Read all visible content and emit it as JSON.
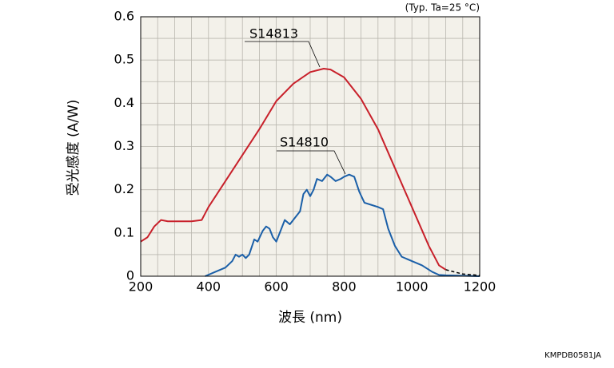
{
  "chart_data": {
    "type": "line",
    "note": "(Typ. Ta=25 °C)",
    "x_label": "波長 (nm)",
    "y_label": "受光感度 (A/W)",
    "footer": "KMPDB0581JA",
    "xlim": [
      200,
      1200
    ],
    "xticks": [
      200,
      400,
      600,
      800,
      1000,
      1200
    ],
    "ylim": [
      0,
      0.6
    ],
    "yticks": [
      0,
      0.1,
      0.2,
      0.3,
      0.4,
      0.5,
      0.6
    ],
    "xgrid": [
      250,
      300,
      350,
      450,
      500,
      550,
      650,
      700,
      750,
      850,
      900,
      950,
      1050,
      1100,
      1150
    ],
    "ygrid": [
      0.05,
      0.15,
      0.25,
      0.35,
      0.45,
      0.55
    ],
    "grid": true,
    "series": [
      {
        "name": "S14813",
        "color": "#c8202a",
        "x": [
          200,
          220,
          240,
          260,
          280,
          300,
          350,
          380,
          400,
          450,
          500,
          550,
          600,
          650,
          700,
          740,
          760,
          800,
          850,
          900,
          950,
          1000,
          1050,
          1080,
          1100
        ],
        "values": [
          0.08,
          0.09,
          0.115,
          0.13,
          0.127,
          0.127,
          0.127,
          0.13,
          0.16,
          0.22,
          0.28,
          0.34,
          0.405,
          0.445,
          0.472,
          0.48,
          0.478,
          0.46,
          0.41,
          0.34,
          0.25,
          0.16,
          0.07,
          0.025,
          0.015
        ]
      },
      {
        "name": "S14810",
        "color": "#1a5fa8",
        "x": [
          390,
          420,
          450,
          470,
          480,
          490,
          500,
          510,
          520,
          535,
          545,
          560,
          570,
          580,
          590,
          600,
          610,
          625,
          640,
          660,
          670,
          680,
          690,
          700,
          710,
          720,
          735,
          750,
          760,
          775,
          790,
          800,
          815,
          830,
          845,
          860,
          880,
          900,
          915,
          930,
          950,
          970,
          1000,
          1030,
          1060,
          1080,
          1100,
          1200
        ],
        "values": [
          0,
          0.01,
          0.02,
          0.035,
          0.05,
          0.045,
          0.05,
          0.042,
          0.05,
          0.085,
          0.08,
          0.105,
          0.115,
          0.11,
          0.09,
          0.08,
          0.1,
          0.13,
          0.12,
          0.14,
          0.15,
          0.19,
          0.2,
          0.185,
          0.2,
          0.225,
          0.22,
          0.235,
          0.23,
          0.22,
          0.225,
          0.23,
          0.235,
          0.23,
          0.195,
          0.17,
          0.165,
          0.16,
          0.155,
          0.11,
          0.07,
          0.045,
          0.035,
          0.025,
          0.01,
          0.003,
          0.002,
          0
        ]
      },
      {
        "color": "#000000",
        "dash": true,
        "x": [
          1100,
          1150,
          1200
        ],
        "values": [
          0.015,
          0.005,
          0.002
        ]
      }
    ]
  }
}
